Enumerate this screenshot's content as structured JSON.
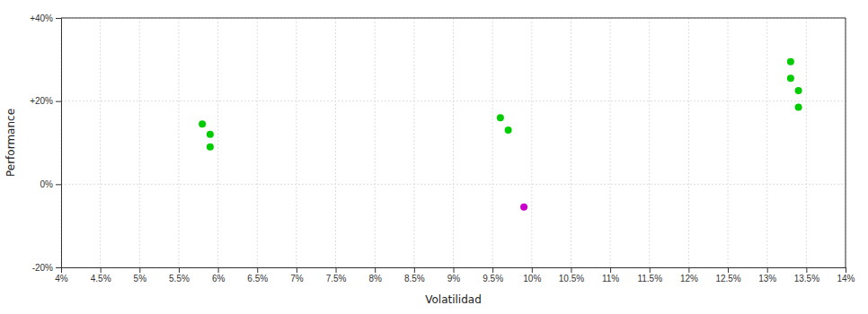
{
  "chart_data": {
    "type": "scatter",
    "xlabel": "Volatilidad",
    "ylabel": "Performance",
    "xlim": [
      0.04,
      0.14
    ],
    "ylim": [
      -0.2,
      0.4
    ],
    "xticks": [
      {
        "value": 0.04,
        "label": "4%"
      },
      {
        "value": 0.045,
        "label": "4.5%"
      },
      {
        "value": 0.05,
        "label": "5%"
      },
      {
        "value": 0.055,
        "label": "5.5%"
      },
      {
        "value": 0.06,
        "label": "6%"
      },
      {
        "value": 0.065,
        "label": "6.5%"
      },
      {
        "value": 0.07,
        "label": "7%"
      },
      {
        "value": 0.075,
        "label": "7.5%"
      },
      {
        "value": 0.08,
        "label": "8%"
      },
      {
        "value": 0.085,
        "label": "8.5%"
      },
      {
        "value": 0.09,
        "label": "9%"
      },
      {
        "value": 0.095,
        "label": "9.5%"
      },
      {
        "value": 0.1,
        "label": "10%"
      },
      {
        "value": 0.105,
        "label": "10.5%"
      },
      {
        "value": 0.11,
        "label": "11%"
      },
      {
        "value": 0.115,
        "label": "11.5%"
      },
      {
        "value": 0.12,
        "label": "12%"
      },
      {
        "value": 0.125,
        "label": "12.5%"
      },
      {
        "value": 0.13,
        "label": "13%"
      },
      {
        "value": 0.135,
        "label": "13.5%"
      },
      {
        "value": 0.14,
        "label": "14%"
      }
    ],
    "yticks": [
      {
        "value": -0.2,
        "label": "-20%"
      },
      {
        "value": 0.0,
        "label": "0%"
      },
      {
        "value": 0.2,
        "label": "+20%"
      },
      {
        "value": 0.4,
        "label": "+40%"
      }
    ],
    "grid": true,
    "series": [
      {
        "color": "#00cc00",
        "x": [
          0.058,
          0.059,
          0.059,
          0.096,
          0.097,
          0.133,
          0.133,
          0.134,
          0.134
        ],
        "values": [
          0.145,
          0.12,
          0.09,
          0.16,
          0.13,
          0.295,
          0.255,
          0.225,
          0.185
        ]
      },
      {
        "color": "#cc00cc",
        "x": [
          0.099
        ],
        "values": [
          -0.055
        ]
      }
    ]
  }
}
